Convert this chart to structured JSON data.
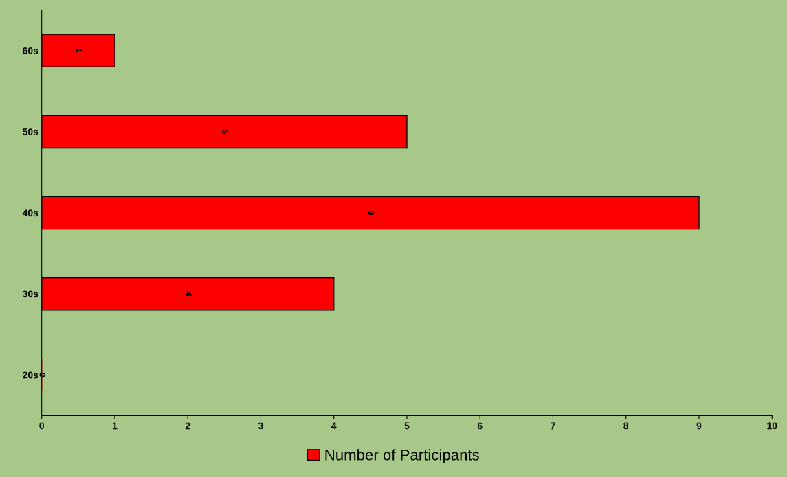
{
  "chart_data": {
    "type": "bar",
    "orientation": "horizontal",
    "categories": [
      "60s",
      "50s",
      "40s",
      "30s",
      "20s"
    ],
    "series": [
      {
        "name": "Number of Participants",
        "color": "#ff0000",
        "values": [
          1,
          5,
          9,
          4,
          0
        ]
      }
    ],
    "xlim": [
      0,
      10
    ],
    "xticks": [
      0,
      1,
      2,
      3,
      4,
      5,
      6,
      7,
      8,
      9,
      10
    ],
    "data_labels": true,
    "legend": "bottom",
    "grid": false
  }
}
